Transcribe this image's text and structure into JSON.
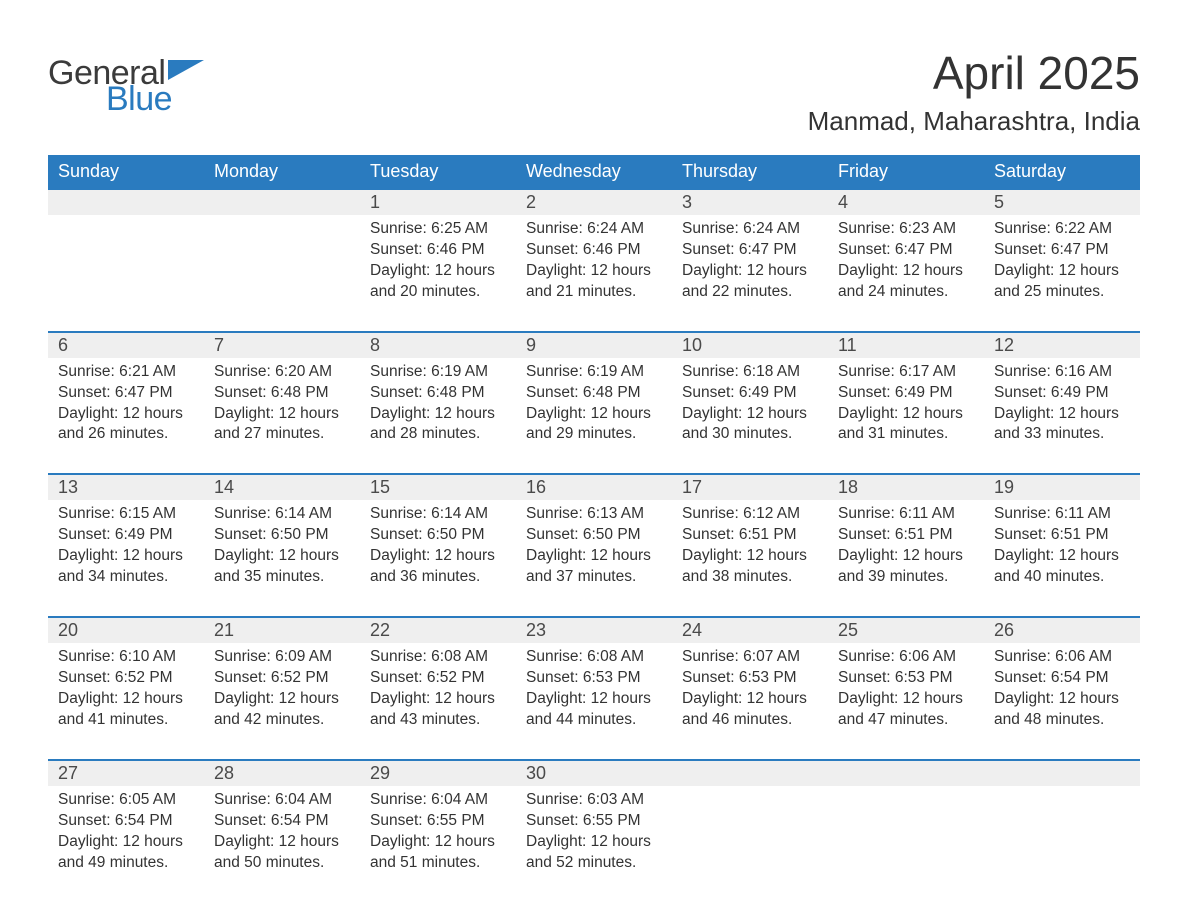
{
  "logo": {
    "part1": "General",
    "part2": "Blue",
    "text_color": "#3b3b3b",
    "accent_color": "#2a7bbf"
  },
  "title": "April 2025",
  "location": "Manmad, Maharashtra, India",
  "daynames": [
    "Sunday",
    "Monday",
    "Tuesday",
    "Wednesday",
    "Thursday",
    "Friday",
    "Saturday"
  ],
  "colors": {
    "header_bg": "#2a7bbf",
    "header_text": "#ffffff",
    "daynum_bg": "#efefef",
    "row_border": "#2a7bbf",
    "body_text": "#333333"
  },
  "weeks": [
    [
      null,
      null,
      {
        "n": "1",
        "sunrise": "6:25 AM",
        "sunset": "6:46 PM",
        "daylight": "12 hours and 20 minutes."
      },
      {
        "n": "2",
        "sunrise": "6:24 AM",
        "sunset": "6:46 PM",
        "daylight": "12 hours and 21 minutes."
      },
      {
        "n": "3",
        "sunrise": "6:24 AM",
        "sunset": "6:47 PM",
        "daylight": "12 hours and 22 minutes."
      },
      {
        "n": "4",
        "sunrise": "6:23 AM",
        "sunset": "6:47 PM",
        "daylight": "12 hours and 24 minutes."
      },
      {
        "n": "5",
        "sunrise": "6:22 AM",
        "sunset": "6:47 PM",
        "daylight": "12 hours and 25 minutes."
      }
    ],
    [
      {
        "n": "6",
        "sunrise": "6:21 AM",
        "sunset": "6:47 PM",
        "daylight": "12 hours and 26 minutes."
      },
      {
        "n": "7",
        "sunrise": "6:20 AM",
        "sunset": "6:48 PM",
        "daylight": "12 hours and 27 minutes."
      },
      {
        "n": "8",
        "sunrise": "6:19 AM",
        "sunset": "6:48 PM",
        "daylight": "12 hours and 28 minutes."
      },
      {
        "n": "9",
        "sunrise": "6:19 AM",
        "sunset": "6:48 PM",
        "daylight": "12 hours and 29 minutes."
      },
      {
        "n": "10",
        "sunrise": "6:18 AM",
        "sunset": "6:49 PM",
        "daylight": "12 hours and 30 minutes."
      },
      {
        "n": "11",
        "sunrise": "6:17 AM",
        "sunset": "6:49 PM",
        "daylight": "12 hours and 31 minutes."
      },
      {
        "n": "12",
        "sunrise": "6:16 AM",
        "sunset": "6:49 PM",
        "daylight": "12 hours and 33 minutes."
      }
    ],
    [
      {
        "n": "13",
        "sunrise": "6:15 AM",
        "sunset": "6:49 PM",
        "daylight": "12 hours and 34 minutes."
      },
      {
        "n": "14",
        "sunrise": "6:14 AM",
        "sunset": "6:50 PM",
        "daylight": "12 hours and 35 minutes."
      },
      {
        "n": "15",
        "sunrise": "6:14 AM",
        "sunset": "6:50 PM",
        "daylight": "12 hours and 36 minutes."
      },
      {
        "n": "16",
        "sunrise": "6:13 AM",
        "sunset": "6:50 PM",
        "daylight": "12 hours and 37 minutes."
      },
      {
        "n": "17",
        "sunrise": "6:12 AM",
        "sunset": "6:51 PM",
        "daylight": "12 hours and 38 minutes."
      },
      {
        "n": "18",
        "sunrise": "6:11 AM",
        "sunset": "6:51 PM",
        "daylight": "12 hours and 39 minutes."
      },
      {
        "n": "19",
        "sunrise": "6:11 AM",
        "sunset": "6:51 PM",
        "daylight": "12 hours and 40 minutes."
      }
    ],
    [
      {
        "n": "20",
        "sunrise": "6:10 AM",
        "sunset": "6:52 PM",
        "daylight": "12 hours and 41 minutes."
      },
      {
        "n": "21",
        "sunrise": "6:09 AM",
        "sunset": "6:52 PM",
        "daylight": "12 hours and 42 minutes."
      },
      {
        "n": "22",
        "sunrise": "6:08 AM",
        "sunset": "6:52 PM",
        "daylight": "12 hours and 43 minutes."
      },
      {
        "n": "23",
        "sunrise": "6:08 AM",
        "sunset": "6:53 PM",
        "daylight": "12 hours and 44 minutes."
      },
      {
        "n": "24",
        "sunrise": "6:07 AM",
        "sunset": "6:53 PM",
        "daylight": "12 hours and 46 minutes."
      },
      {
        "n": "25",
        "sunrise": "6:06 AM",
        "sunset": "6:53 PM",
        "daylight": "12 hours and 47 minutes."
      },
      {
        "n": "26",
        "sunrise": "6:06 AM",
        "sunset": "6:54 PM",
        "daylight": "12 hours and 48 minutes."
      }
    ],
    [
      {
        "n": "27",
        "sunrise": "6:05 AM",
        "sunset": "6:54 PM",
        "daylight": "12 hours and 49 minutes."
      },
      {
        "n": "28",
        "sunrise": "6:04 AM",
        "sunset": "6:54 PM",
        "daylight": "12 hours and 50 minutes."
      },
      {
        "n": "29",
        "sunrise": "6:04 AM",
        "sunset": "6:55 PM",
        "daylight": "12 hours and 51 minutes."
      },
      {
        "n": "30",
        "sunrise": "6:03 AM",
        "sunset": "6:55 PM",
        "daylight": "12 hours and 52 minutes."
      },
      null,
      null,
      null
    ]
  ],
  "labels": {
    "sunrise": "Sunrise: ",
    "sunset": "Sunset: ",
    "daylight": "Daylight: "
  }
}
